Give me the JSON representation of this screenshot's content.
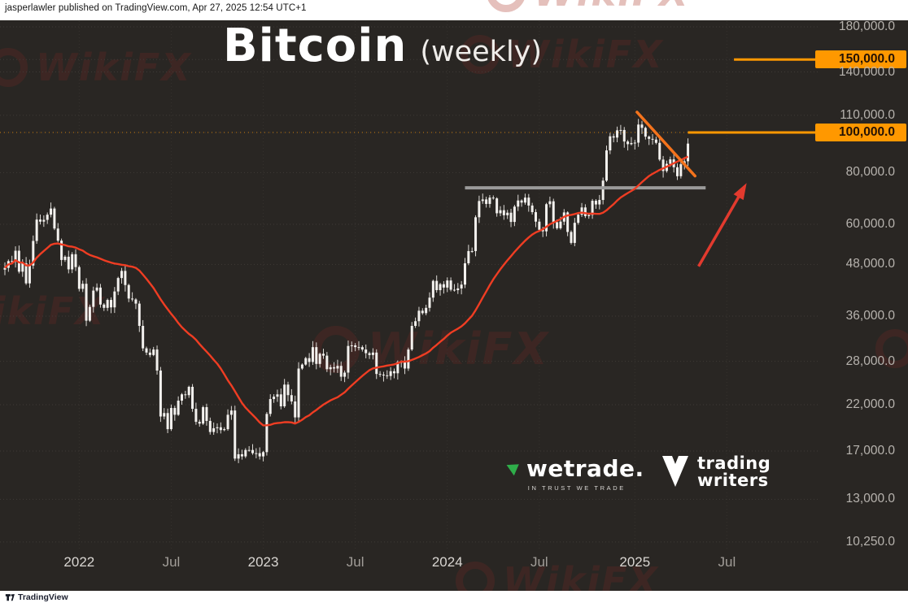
{
  "attribution": "jasperlawler published on TradingView.com, Apr 27, 2025 12:54 UTC+1",
  "title": {
    "main": "Bitcoin",
    "sub": "(weekly)"
  },
  "watermark_text": "WikiFX",
  "brand_logos": {
    "wetrade": {
      "name": "wetrade.",
      "tagline": "IN TRUST WE TRADE"
    },
    "trading_writers": {
      "line1": "trading",
      "line2": "writers"
    },
    "footer_brand": "TradingView"
  },
  "colors": {
    "background": "#292623",
    "grid": "#3f3b37",
    "candle_body": "#f3f1ee",
    "candle_wick": "#dcd9d5",
    "ma_line": "#ef3d23",
    "level_orange": "#ff9800",
    "trend_orange": "#f4731c",
    "arrow_red": "#e23a2e",
    "support_gray": "#9a9a9a",
    "axis_text": "#b7b3ae"
  },
  "chart_data": {
    "type": "candlestick",
    "title": "Bitcoin (weekly)",
    "timeframe": "weekly",
    "scale": "log",
    "first_week_monday": "2021-08-09",
    "weekly_closes_usd_thousands": [
      47.1,
      48.9,
      48.8,
      51.8,
      46.1,
      48.3,
      43.2,
      47.7,
      54.7,
      61.6,
      60.9,
      61.5,
      63.3,
      65.5,
      58.6,
      54.8,
      49.2,
      50.1,
      46.7,
      50.8,
      47.3,
      41.9,
      43.1,
      35.1,
      37.9,
      41.5,
      42.2,
      38.4,
      37.7,
      39.4,
      37.8,
      41.3,
      44.5,
      46.3,
      42.8,
      39.7,
      39.5,
      38.6,
      34.1,
      30.1,
      29.4,
      29.0,
      29.9,
      26.6,
      20.6,
      21.0,
      19.2,
      21.6,
      20.8,
      22.5,
      23.3,
      23.2,
      24.3,
      21.5,
      20.0,
      19.8,
      21.7,
      20.1,
      18.9,
      19.3,
      19.4,
      19.1,
      19.2,
      20.8,
      21.3,
      16.3,
      16.7,
      16.5,
      17.1,
      17.1,
      16.8,
      16.8,
      16.5,
      16.9,
      20.9,
      22.7,
      23.0,
      23.3,
      21.8,
      24.6,
      23.2,
      22.4,
      20.5,
      26.9,
      27.5,
      28.5,
      27.9,
      30.3,
      27.6,
      29.2,
      28.9,
      26.8,
      27.1,
      26.9,
      27.3,
      25.7,
      26.3,
      30.5,
      30.6,
      30.3,
      30.3,
      29.9,
      29.3,
      29.0,
      29.4,
      26.1,
      26.0,
      25.9,
      25.8,
      26.5,
      26.2,
      27.9,
      27.9,
      26.9,
      29.9,
      34.1,
      35.0,
      37.1,
      36.6,
      37.7,
      39.9,
      43.8,
      41.6,
      43.0,
      42.2,
      43.9,
      41.7,
      41.6,
      42.0,
      42.9,
      48.3,
      51.7,
      51.7,
      62.4,
      68.3,
      68.9,
      67.2,
      69.6,
      69.3,
      63.8,
      64.9,
      63.1,
      64.0,
      60.8,
      66.2,
      68.5,
      67.7,
      69.6,
      66.6,
      64.2,
      60.9,
      58.2,
      57.7,
      67.1,
      68.2,
      60.7,
      58.7,
      60.9,
      64.1,
      57.5,
      54.1,
      60.5,
      63.3,
      65.9,
      62.8,
      63.2,
      68.4,
      67.0,
      68.7,
      76.5,
      90.5,
      97.9,
      97.2,
      101.2,
      101.4,
      95.1,
      93.7,
      94.3,
      94.5,
      104.5,
      102.6,
      97.7,
      96.5,
      96.1,
      94.4,
      86.0,
      80.7,
      84.0,
      86.1,
      82.4,
      78.4,
      83.8,
      85.2,
      94.0
    ],
    "sma": {
      "window_weeks": 30
    },
    "y_axis": {
      "scale": "log",
      "ticks": [
        {
          "label": "180,000.0",
          "price": 180
        },
        {
          "label": "150,000.0",
          "price": 150,
          "box": true
        },
        {
          "label": "140,000.0",
          "price": 140
        },
        {
          "label": "110,000.0",
          "price": 110
        },
        {
          "label": "100,000.0",
          "price": 100,
          "box": true
        },
        {
          "label": "80,000.0",
          "price": 80
        },
        {
          "label": "60,000.0",
          "price": 60
        },
        {
          "label": "48,000.0",
          "price": 48
        },
        {
          "label": "36,000.0",
          "price": 36
        },
        {
          "label": "28,000.0",
          "price": 28
        },
        {
          "label": "22,000.0",
          "price": 22
        },
        {
          "label": "17,000.0",
          "price": 17
        },
        {
          "label": "13,000.0",
          "price": 13
        },
        {
          "label": "10,250.0",
          "price": 10.25
        }
      ]
    },
    "x_axis": {
      "labels": [
        {
          "label": "2022",
          "week": 21,
          "major": true
        },
        {
          "label": "Jul",
          "week": 47,
          "major": false
        },
        {
          "label": "2023",
          "week": 73,
          "major": true
        },
        {
          "label": "Jul",
          "week": 99,
          "major": false
        },
        {
          "label": "2024",
          "week": 125,
          "major": true
        },
        {
          "label": "Jul",
          "week": 151,
          "major": false
        },
        {
          "label": "2025",
          "week": 178,
          "major": true
        },
        {
          "label": "Jul",
          "week": 204,
          "major": false
        }
      ]
    },
    "key_levels": [
      {
        "label": "150,000.0",
        "price": 150,
        "ray_from_week": 206
      },
      {
        "label": "100,000.0",
        "price": 100,
        "ray_from_week": 193
      }
    ],
    "overlays": {
      "dotted_level": {
        "price_thousands": 100
      },
      "support_line": {
        "price_thousands": 73.5,
        "from_week": 130,
        "to_week": 198
      },
      "trend_line": {
        "from": {
          "week": 178.6,
          "price_thousands": 112
        },
        "to": {
          "week": 195,
          "price_thousands": 78.5
        }
      },
      "arrow_up": {
        "from": {
          "week": 196,
          "price_thousands": 47.5
        },
        "to": {
          "week": 209,
          "price_thousands": 74
        }
      }
    }
  }
}
